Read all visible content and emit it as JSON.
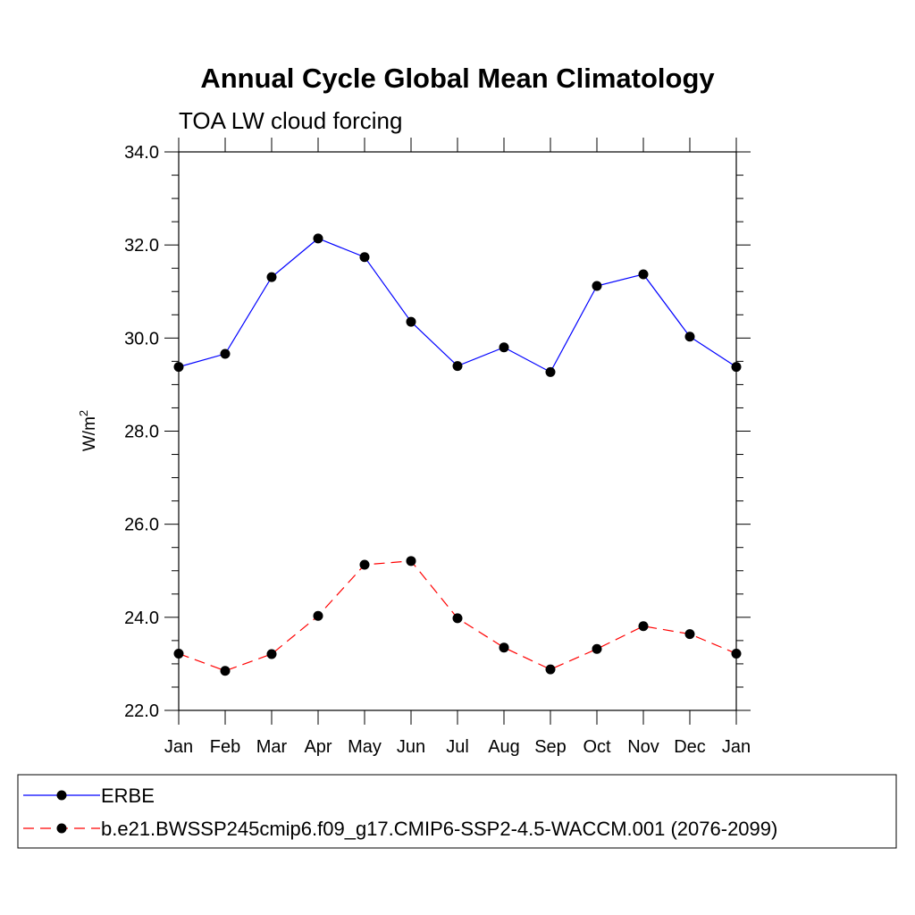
{
  "chart_data": {
    "type": "line",
    "title": "Annual Cycle Global Mean Climatology",
    "subtitle": "TOA LW cloud forcing",
    "ylabel": "W/m",
    "ylabel_superscript": "2",
    "ylim": [
      22.0,
      34.0
    ],
    "yticks": [
      "22.0",
      "24.0",
      "26.0",
      "28.0",
      "30.0",
      "32.0",
      "34.0"
    ],
    "categories": [
      "Jan",
      "Feb",
      "Mar",
      "Apr",
      "May",
      "Jun",
      "Jul",
      "Aug",
      "Sep",
      "Oct",
      "Nov",
      "Dec",
      "Jan"
    ],
    "series": [
      {
        "name": "ERBE",
        "color": "#0000ff",
        "dashed": false,
        "values": [
          29.38,
          29.66,
          31.31,
          32.14,
          31.74,
          30.35,
          29.4,
          29.8,
          29.27,
          31.12,
          31.37,
          30.03,
          29.38
        ]
      },
      {
        "name": "b.e21.BWSSP245cmip6.f09_g17.CMIP6-SSP2-4.5-WACCM.001 (2076-2099)",
        "color": "#ff0000",
        "dashed": true,
        "values": [
          23.22,
          22.85,
          23.21,
          24.03,
          25.13,
          25.21,
          23.98,
          23.35,
          22.88,
          23.32,
          23.81,
          23.64,
          23.22
        ]
      }
    ],
    "grid": false,
    "legend_position": "bottom"
  }
}
